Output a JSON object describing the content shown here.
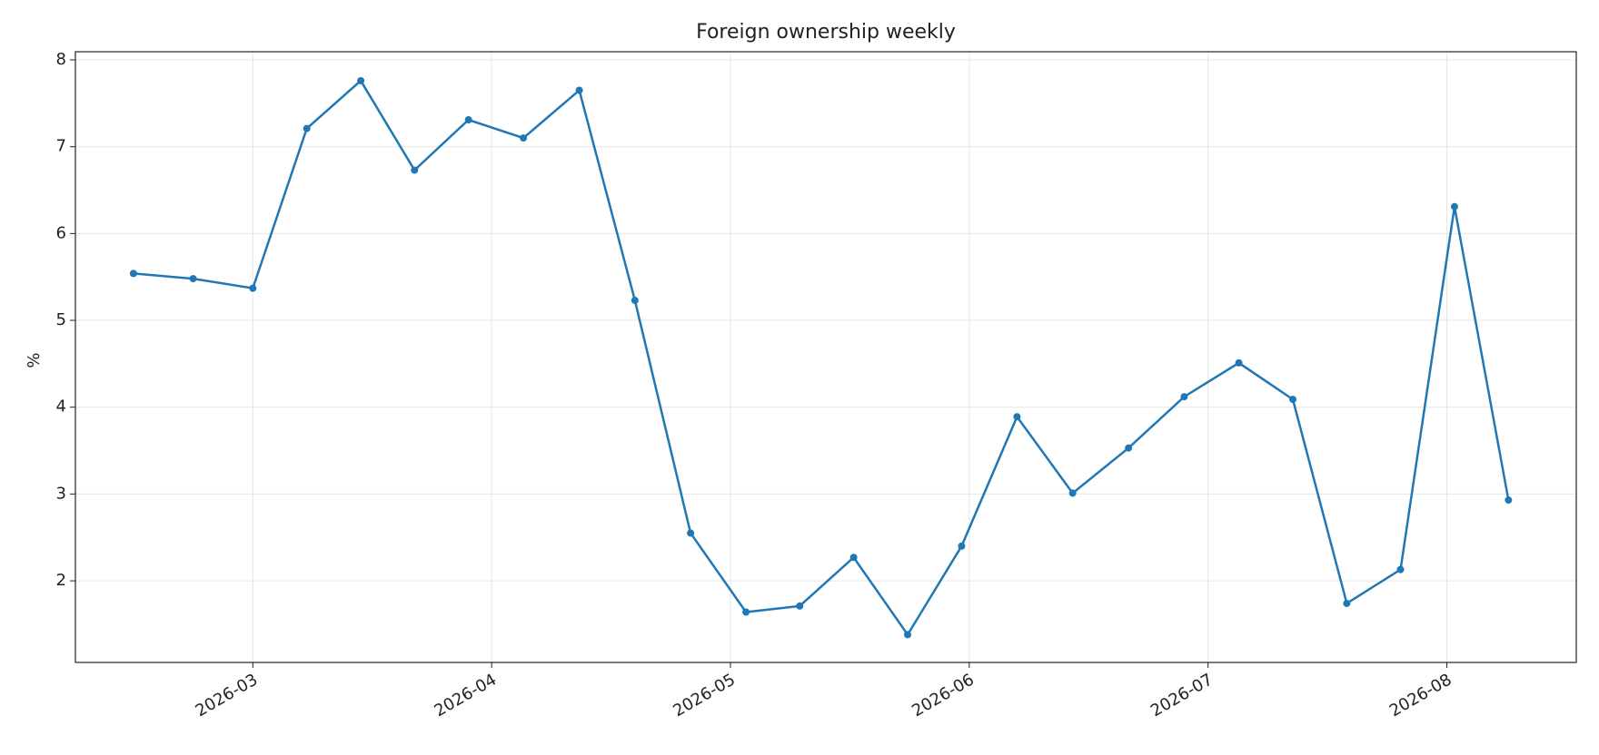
{
  "chart_data": {
    "type": "line",
    "title": "Foreign ownership weekly",
    "y_label": "%",
    "x": [
      2.5,
      2.75,
      3,
      3.226,
      3.452,
      3.677,
      3.903,
      4.133,
      4.367,
      4.6,
      4.833,
      5.065,
      5.29,
      5.516,
      5.742,
      5.968,
      6.2,
      6.433,
      6.667,
      6.9,
      7.129,
      7.355,
      7.581,
      7.806,
      8.032,
      8.258
    ],
    "series": [
      {
        "name": "Foreign ownership",
        "color": "#1f77b4",
        "values": [
          5.54,
          5.48,
          5.37,
          7.21,
          7.76,
          6.73,
          7.31,
          7.1,
          7.65,
          5.23,
          2.55,
          1.64,
          1.71,
          2.27,
          1.38,
          2.4,
          3.89,
          3.01,
          3.53,
          4.12,
          4.51,
          4.09,
          1.74,
          2.13,
          6.31,
          2.93
        ]
      }
    ],
    "xlim": [
      2.257,
      8.542
    ],
    "xticks": [
      {
        "value": 3,
        "label": "2026-03"
      },
      {
        "value": 4,
        "label": "2026-04"
      },
      {
        "value": 5,
        "label": "2026-05"
      },
      {
        "value": 6,
        "label": "2026-06"
      },
      {
        "value": 7,
        "label": "2026-07"
      },
      {
        "value": 8,
        "label": "2026-08"
      }
    ],
    "ylim": [
      1.06,
      8.094
    ],
    "yticks": [
      2,
      3,
      4,
      5,
      6,
      7,
      8
    ],
    "grid": true,
    "markers": true
  }
}
